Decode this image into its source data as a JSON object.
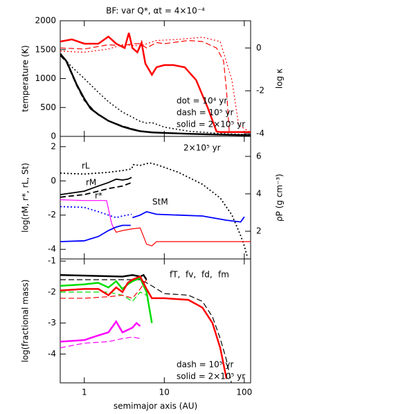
{
  "chart_data": [
    {
      "type": "line",
      "title": "BF: var Q*, αt = 4×10⁻⁴",
      "ylabel": "temperature (K)",
      "y2label": "log κ",
      "xscale": "log",
      "xlim": [
        0.5,
        120
      ],
      "ylim": [
        0,
        2000
      ],
      "yticks": [
        0,
        500,
        1000,
        1500,
        2000
      ],
      "y2lim": [
        -4.13,
        1.27
      ],
      "y2ticks": [
        -4,
        -2,
        0
      ],
      "series": [
        {
          "color": "#000000",
          "dash": "dotted",
          "width": 1.5,
          "x": [
            0.5,
            0.7,
            1,
            1.5,
            2,
            3,
            4,
            5,
            6,
            7,
            10,
            20,
            50,
            120
          ],
          "values": [
            1420,
            1200,
            1000,
            760,
            600,
            420,
            330,
            260,
            230,
            240,
            160,
            90,
            50,
            30
          ]
        },
        {
          "color": "#000000",
          "dash": "dashed",
          "width": 1.5,
          "x": [
            0.5,
            0.6,
            0.8,
            1,
            1.5,
            2,
            3,
            4,
            5,
            7,
            10,
            20,
            50,
            120
          ],
          "values": [
            1400,
            1280,
            880,
            620,
            370,
            270,
            180,
            130,
            95,
            75,
            62,
            46,
            31,
            19
          ]
        },
        {
          "color": "#000000",
          "dash": "solid",
          "width": 2.5,
          "x": [
            0.5,
            0.6,
            0.8,
            1,
            1.2,
            1.5,
            2,
            3,
            4,
            5,
            7,
            10,
            20,
            50,
            100,
            120
          ],
          "values": [
            1430,
            1300,
            900,
            650,
            480,
            380,
            270,
            170,
            120,
            90,
            70,
            60,
            45,
            30,
            20,
            18
          ]
        },
        {
          "color": "#ff0000",
          "dash": "dotted",
          "width": 1.2,
          "axis": "y2",
          "x": [
            0.5,
            1,
            2,
            3,
            5,
            8,
            15,
            30,
            50,
            70,
            85,
            120
          ],
          "values": [
            -0.15,
            -0.2,
            -0.05,
            0.15,
            0.1,
            0.35,
            0.4,
            0.5,
            0.3,
            -1.5,
            -3.6,
            -3.95
          ]
        },
        {
          "color": "#ff0000",
          "dash": "dashed",
          "width": 1.2,
          "axis": "y2",
          "x": [
            0.5,
            1,
            2,
            3,
            4,
            5,
            6,
            8,
            10,
            20,
            30,
            45,
            55,
            60,
            65,
            120
          ],
          "values": [
            0.0,
            -0.05,
            0.15,
            0.1,
            0.2,
            0.2,
            0.0,
            0.25,
            0.2,
            0.35,
            0.3,
            0.0,
            -0.6,
            -2,
            -3.93,
            -3.93
          ]
        },
        {
          "color": "#ff0000",
          "dash": "solid",
          "width": 2.5,
          "axis": "y2",
          "x": [
            0.5,
            0.7,
            1,
            1.5,
            2,
            2.5,
            3.2,
            3.6,
            4,
            4.6,
            5.2,
            5.8,
            7,
            8,
            10,
            13,
            18,
            25,
            35,
            45,
            50,
            120
          ],
          "values": [
            0.3,
            0.4,
            0.2,
            0.2,
            0.53,
            0.2,
            0.0,
            0.7,
            0.0,
            -0.2,
            0.25,
            -0.73,
            -1.25,
            -0.9,
            -0.8,
            -0.8,
            -0.9,
            -1.5,
            -2.8,
            -3.9,
            -3.93,
            -3.93
          ]
        }
      ],
      "annotations": [
        {
          "text": "dot  =  10⁴ yr",
          "color": "#000000"
        },
        {
          "text": "dash  =  10⁵ yr",
          "color": "#000000"
        },
        {
          "text": "solid  =  2×10⁵ yr",
          "color": "#000000"
        }
      ]
    },
    {
      "type": "line",
      "ylabel": "log(rM, r*, rL, St)",
      "y2label": "ρP (g cm⁻³)",
      "xscale": "log",
      "xlim": [
        0.5,
        120
      ],
      "ylim": [
        -4.56,
        2.6
      ],
      "yticks": [
        -4,
        -2,
        0,
        2
      ],
      "y2lim": [
        0.52,
        7.07
      ],
      "y2ticks": [
        2,
        4,
        6
      ],
      "series": [
        {
          "color": "#000000",
          "dash": "dotted",
          "width": 1.8,
          "x": [
            0.5,
            1,
            2,
            3,
            3.9,
            4.1,
            5,
            6.5,
            8,
            15,
            30,
            50,
            70,
            90,
            100,
            110
          ],
          "values": [
            0.45,
            0.4,
            0.5,
            0.6,
            0.7,
            0.95,
            0.9,
            1.05,
            0.95,
            0.5,
            -0.2,
            -1,
            -2,
            -3.2,
            -3.8,
            -4.5
          ]
        },
        {
          "color": "#000000",
          "dash": "solid",
          "width": 1.8,
          "x": [
            0.5,
            1,
            1.5,
            2,
            2.5,
            3,
            3.5,
            3.9
          ],
          "values": [
            -0.8,
            -0.6,
            -0.3,
            -0.1,
            0.1,
            0.05,
            0.1,
            0.2
          ]
        },
        {
          "color": "#000000",
          "dash": "dashed",
          "width": 1.8,
          "x": [
            0.5,
            1,
            1.5,
            2,
            3,
            3.9
          ],
          "values": [
            -0.95,
            -0.8,
            -0.6,
            -0.45,
            -0.3,
            -0.1
          ]
        },
        {
          "color": "#ff00ff",
          "dash": "solid",
          "width": 1.2,
          "x": [
            0.5,
            1,
            1.5,
            1.9,
            2.2,
            2.3
          ],
          "values": [
            -1.1,
            -1.15,
            -1.15,
            -1.15,
            -2.5,
            -2.7
          ]
        },
        {
          "color": "#ff0000",
          "dash": "solid",
          "width": 1.2,
          "x": [
            2.3,
            2.5,
            3,
            4,
            5,
            6,
            7,
            8,
            20,
            120
          ],
          "values": [
            -2.7,
            -3.0,
            -2.9,
            -2.8,
            -2.75,
            -3.7,
            -3.8,
            -3.55,
            -3.55,
            -3.55
          ]
        },
        {
          "color": "#0000ff",
          "dash": "dotted",
          "width": 1.8,
          "x": [
            0.5,
            1,
            1.5,
            2,
            2.5,
            3,
            3.9
          ],
          "values": [
            -1.5,
            -1.55,
            -1.8,
            -2.0,
            -2.15,
            -2.05,
            -1.95
          ]
        },
        {
          "color": "#0000ff",
          "dash": "solid",
          "width": 1.8,
          "x": [
            0.5,
            1,
            1.5,
            2,
            2.5,
            3,
            3.8,
            3.9,
            4,
            5,
            6,
            8,
            15,
            30,
            60,
            90,
            100
          ],
          "values": [
            -3.55,
            -3.5,
            -3.25,
            -2.9,
            -2.7,
            -2.6,
            -2.6,
            null,
            -2.15,
            -2.0,
            -1.8,
            -1.95,
            -2.0,
            -2.05,
            -2.3,
            -2.4,
            -2.1
          ]
        }
      ],
      "annotations": [
        {
          "text": "2×10⁵ yr",
          "color": "#000000"
        },
        {
          "text": "rL",
          "color": "#000000"
        },
        {
          "text": "rM",
          "color": "#000000"
        },
        {
          "text": "r*",
          "color": "#000000"
        },
        {
          "text": "StM",
          "color": "#0000ff"
        }
      ]
    },
    {
      "type": "line",
      "ylabel": "log(fractional mass)",
      "xlabel": "semimajor axis (AU)",
      "xscale": "log",
      "xlim": [
        0.5,
        120
      ],
      "ylim": [
        -4.93,
        -0.93
      ],
      "yticks": [
        -4,
        -3,
        -2,
        -1
      ],
      "xticks": [
        1,
        10,
        100
      ],
      "series": [
        {
          "color": "#000000",
          "dash": "solid",
          "width": 2.5,
          "x": [
            0.5,
            3,
            4,
            5,
            5.5,
            6
          ],
          "values": [
            -1.45,
            -1.5,
            -1.45,
            -1.5,
            -1.45,
            -1.6
          ]
        },
        {
          "color": "#000000",
          "dash": "dashed",
          "width": 1.2,
          "x": [
            0.5,
            5,
            6,
            7,
            10,
            20,
            30,
            40,
            50,
            60,
            70
          ],
          "values": [
            -1.6,
            -1.6,
            -1.7,
            -1.8,
            -2.05,
            -2.1,
            -2.3,
            -2.8,
            -3.5,
            -4.2,
            -5
          ]
        },
        {
          "color": "#00dd00",
          "dash": "solid",
          "width": 2.5,
          "x": [
            0.5,
            1,
            1.5,
            2,
            2.5,
            3,
            3.5,
            4,
            5,
            6,
            7
          ],
          "values": [
            -1.8,
            -1.75,
            -1.7,
            -1.85,
            -1.65,
            -1.9,
            -1.75,
            -1.65,
            -1.55,
            -2.0,
            -3
          ]
        },
        {
          "color": "#00dd00",
          "dash": "dashed",
          "width": 1.2,
          "x": [
            0.5,
            2,
            3,
            4,
            5,
            6
          ],
          "values": [
            -2.0,
            -2.0,
            -2.1,
            -2.3,
            -2.0,
            -2.1
          ]
        },
        {
          "color": "#ff0000",
          "dash": "solid",
          "width": 2.5,
          "x": [
            0.5,
            1,
            1.5,
            2,
            2.5,
            3,
            3.5,
            4,
            5,
            6,
            7,
            10,
            20,
            30,
            40,
            50,
            60
          ],
          "values": [
            -1.95,
            -1.9,
            -1.9,
            -2.1,
            -1.85,
            -2.0,
            -1.7,
            -1.6,
            -1.5,
            -1.9,
            -2.2,
            -2.2,
            -2.25,
            -2.5,
            -3.0,
            -3.8,
            -4.8
          ]
        },
        {
          "color": "#ff0000",
          "dash": "dashed",
          "width": 1.2,
          "x": [
            0.5,
            1,
            2,
            3,
            4,
            5,
            6
          ],
          "values": [
            -2.2,
            -2.2,
            -2.15,
            -2.1,
            -2.2,
            -1.9,
            -1.6
          ]
        },
        {
          "color": "#ff00ff",
          "dash": "solid",
          "width": 2.5,
          "x": [
            0.5,
            1,
            1.5,
            2,
            2.5,
            3,
            4,
            4.5,
            5
          ],
          "values": [
            -3.6,
            -3.55,
            -3.4,
            -3.3,
            -2.95,
            -3.3,
            -3.15,
            -3.0,
            -3.1
          ]
        },
        {
          "color": "#ff00ff",
          "dash": "dashed",
          "width": 1.2,
          "x": [
            0.5,
            1,
            2,
            3,
            4,
            5
          ],
          "values": [
            -3.8,
            -3.65,
            -3.6,
            -3.5,
            -3.45,
            -3.5
          ]
        }
      ],
      "annotations": [
        {
          "text": "fT,",
          "color": "#000000"
        },
        {
          "text": "fv,",
          "color": "#00dd00"
        },
        {
          "text": "fd,",
          "color": "#ff0000"
        },
        {
          "text": "fm",
          "color": "#ff00ff"
        },
        {
          "text": "dash  =  10⁵ yr",
          "color": "#000000"
        },
        {
          "text": "solid  =  2×10⁵ yr",
          "color": "#000000"
        }
      ]
    }
  ]
}
